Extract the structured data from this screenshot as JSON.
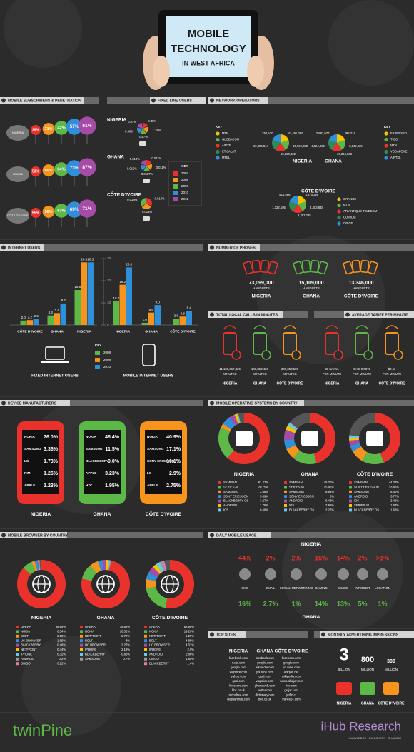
{
  "header": {
    "title_lines": [
      "MOBILE",
      "TECHNOLOGY",
      "IN WEST AFRICA"
    ]
  },
  "subscribers": {
    "title": "MOBILE SUBSCRIBERS & PENETRATION",
    "rows": [
      {
        "country": "NIGERIA",
        "values": [
          "29%",
          "31%",
          "42%",
          "57%",
          "61%"
        ]
      },
      {
        "country": "GHANA",
        "values": [
          "53%",
          "60%",
          "64%",
          "73%",
          "87%"
        ]
      },
      {
        "country": "CÔTE D'IVOIRE",
        "values": [
          "55%",
          "58%",
          "63%",
          "69%",
          "71%"
        ]
      }
    ]
  },
  "fixed_line": {
    "title": "FIXED LINE USERS",
    "rows": [
      {
        "country": "NIGERIA",
        "values": [
          "0.48%",
          "1.18%",
          "0.67%",
          "0.90%",
          "0.87%"
        ]
      },
      {
        "country": "GHANA",
        "values": [
          "0.011%",
          "0.011%",
          "0.0117%",
          "0.015%",
          "0.013%"
        ]
      },
      {
        "country": "CÔTE D'IVOIRE",
        "values": [
          "0.014%",
          "0.013%",
          "0.019%"
        ]
      }
    ],
    "key": {
      "title": "KEY",
      "years": [
        "2007",
        "2008",
        "2009",
        "2010",
        "2011"
      ]
    }
  },
  "operators": {
    "title": "NETWORK OPERATORS",
    "countries": [
      {
        "name": "NIGERIA",
        "key": "KEY",
        "operators": [
          "MTN",
          "GLOBACOM",
          "AIRTEL",
          "ETISALAT",
          "MTEL"
        ],
        "subscribers": [
          "41,461,089",
          "15,752,230",
          "10,820,392",
          "19,806,814",
          "258,520"
        ]
      },
      {
        "name": "GHANA",
        "key": "KEY",
        "operators": [
          "EXPRESSO",
          "TIGO",
          "MTN",
          "VODAFONE",
          "AIRTEL"
        ],
        "subscribers": [
          "292,214",
          "3,642,229",
          "10,394,363",
          "4,524,036",
          "2,897,077"
        ]
      },
      {
        "name": "CÔTE D'IVOIRE",
        "operators": [
          "ORANGE",
          "MTN",
          "ATLANTIQUE TELECOM",
          "COMIUM",
          "ORICEL"
        ],
        "subscribers": [
          "4,370,259",
          "4,403,848",
          "2,292,245",
          "1,122,195",
          "814,966"
        ]
      }
    ]
  },
  "internet": {
    "title": "INTERNET USERS",
    "ylim": [
      0,
      30
    ],
    "yticks": [
      0,
      10,
      20,
      30
    ],
    "fixed": {
      "label": "FIXED INTERNET USERS",
      "groups": [
        {
          "name": "CÔTE D'IVOIRE",
          "values": [
            2.0,
            2.2,
            2.6
          ],
          "value_labels": [
            "2.0",
            "2.2",
            "2.6"
          ]
        },
        {
          "name": "GHANA",
          "values": [
            4.3,
            5.4,
            9.7
          ],
          "value_labels": [
            "4.3",
            "5.4",
            "9.7"
          ]
        },
        {
          "name": "NIGERIA",
          "values": [
            15.8,
            28.3,
            28.3
          ],
          "value_labels": [
            "15.8",
            "28.3",
            "28.3"
          ]
        }
      ]
    },
    "mobile": {
      "label": "MOBILE INTERNET USERS",
      "groups": [
        {
          "name": "NIGERIA",
          "values": [
            10.7,
            18.2,
            26.0
          ],
          "value_labels": [
            "10.7",
            "18.2",
            "26.0"
          ]
        },
        {
          "name": "GHANA",
          "values": [
            1.0,
            5.6,
            9.0
          ],
          "value_labels": [
            "1.0",
            "5.6",
            "9.0"
          ]
        },
        {
          "name": "CÔTE D'IVOIRE",
          "values": [
            2.8,
            3.8,
            6.4
          ],
          "value_labels": [
            "2.8",
            "3.8",
            "6.4"
          ]
        }
      ]
    },
    "key": {
      "title": "KEY",
      "years": [
        "2008",
        "2009",
        "2010"
      ]
    }
  },
  "phones": {
    "title": "NUMBER OF PHONES",
    "items": [
      {
        "count": "73,099,000",
        "unit": "HANDSETS",
        "country": "NIGERIA"
      },
      {
        "count": "15,109,000",
        "unit": "HANDSETS",
        "country": "GHANA"
      },
      {
        "count": "13,346,000",
        "unit": "HANDSETS",
        "country": "CÔTE D'IVOIRE"
      }
    ]
  },
  "calls": {
    "title": "TOTAL LOCAL CALLS IN MINUTES",
    "items": [
      {
        "amount": "41,138,017,326",
        "unit": "MINUTES",
        "country": "NIGERIA"
      },
      {
        "amount": "139,853,403",
        "unit": "MINUTES",
        "country": "GHANA"
      },
      {
        "amount": "309,053,500",
        "unit": "MINUTES",
        "country": "CÔTE D'IVOIRE"
      }
    ]
  },
  "tariff": {
    "title": "AVERAGE TARIFF PER MINUTE",
    "items": [
      {
        "amount": "36 NAIRA",
        "unit": "PER MINUTE",
        "country": "NIGERIA"
      },
      {
        "amount": "GHC 0.0872",
        "unit": "PER MINUTE",
        "country": "GHANA"
      },
      {
        "amount": "$0.11",
        "unit": "PER MINUTE",
        "country": "CÔTE D'IVOIRE"
      }
    ]
  },
  "devices": {
    "title": "DEVICE MANUFACTURERS",
    "phones": [
      {
        "country": "NIGERIA",
        "brands": [
          "NOKIA",
          "SAMSUNG",
          "LG",
          "RIM",
          "APPLE"
        ],
        "shares": [
          "76.0%",
          "3.36%",
          "1.73%",
          "1.26%",
          "1.23%"
        ]
      },
      {
        "country": "GHANA",
        "brands": [
          "NOKIA",
          "SAMSUNG",
          "BLACKBERRY",
          "APPLE",
          "HTC"
        ],
        "shares": [
          "46.4%",
          "11.5%",
          "9.0%",
          "3.23%",
          "1.95%"
        ]
      },
      {
        "country": "CÔTE D'IVOIRE",
        "brands": [
          "NOKIA",
          "SAMSUNG",
          "SONY ERICSSON",
          "LG",
          "APPLE"
        ],
        "shares": [
          "40.9%",
          "17.1%",
          "10.1%",
          "2.9%",
          "2.75%"
        ]
      }
    ]
  },
  "os": {
    "title": "MOBILE OPERATING SYSTEMS BY COUNTRY",
    "countries": [
      {
        "name": "NIGERIA",
        "items": [
          {
            "name": "SYMBIAN",
            "value": 61.27,
            "label": "61.27%"
          },
          {
            "name": "SERIES 40",
            "value": 20.75,
            "label": "20.75%"
          },
          {
            "name": "SAMSUNG",
            "value": 2.66,
            "label": "2.66%"
          },
          {
            "name": "SONY ERICSSON",
            "value": 5.89,
            "label": "5.89%"
          },
          {
            "name": "BLACKBERRY OS",
            "value": 3.27,
            "label": "3.27%"
          },
          {
            "name": "ANDROID",
            "value": 1.78,
            "label": "1.78%"
          },
          {
            "name": "IOS",
            "value": 0.68,
            "label": "0.68%"
          }
        ]
      },
      {
        "name": "GHANA",
        "items": [
          {
            "name": "SYMBIAN",
            "value": 45.71,
            "label": "45.71%"
          },
          {
            "name": "SERIES 40",
            "value": 15.42,
            "label": "15.42%"
          },
          {
            "name": "SAMSUNG",
            "value": 6.95,
            "label": "6.95%"
          },
          {
            "name": "SONY ERICSSON",
            "value": 6,
            "label": "6%"
          },
          {
            "name": "ANDROID",
            "value": 6.48,
            "label": "6.48%"
          },
          {
            "name": "IOS",
            "value": 2.95,
            "label": "2.95%"
          },
          {
            "name": "BLACKBERRY OS",
            "value": 2.27,
            "label": "2.27%"
          }
        ]
      },
      {
        "name": "CÔTE D'IVOIRE",
        "items": [
          {
            "name": "SYMBIAN",
            "value": 44.27,
            "label": "44.27%"
          },
          {
            "name": "SONY ERICSSON",
            "value": 13.86,
            "label": "13.86%"
          },
          {
            "name": "SAMSUNG",
            "value": 8.4,
            "label": "8.40%"
          },
          {
            "name": "ANDROID",
            "value": 3.77,
            "label": "3.77%"
          },
          {
            "name": "IOS",
            "value": 3.42,
            "label": "3.42%"
          },
          {
            "name": "SERIES 40",
            "value": 1.67,
            "label": "1.67%"
          },
          {
            "name": "BLACKBERRY OS",
            "value": 1.66,
            "label": "1.66%"
          }
        ]
      }
    ]
  },
  "browsers": {
    "title": "MOBILE BROWSER BY COUNTRY",
    "countries": [
      {
        "name": "NIGERIA",
        "items": [
          {
            "name": "OPERA",
            "value": 86.69,
            "label": "86.69%"
          },
          {
            "name": "NOKIA",
            "value": 6.54,
            "label": "6.54%"
          },
          {
            "name": "BOLT",
            "value": 2.16,
            "label": "2.16%"
          },
          {
            "name": "UC BROWSER",
            "value": 1.85,
            "label": "1.85%"
          },
          {
            "name": "BLACKBERRY",
            "value": 0.46,
            "label": "0.46%"
          },
          {
            "name": "NETFRONT",
            "value": 0.44,
            "label": "0.44%"
          },
          {
            "name": "IPHONE",
            "value": 0.32,
            "label": "0.32%"
          },
          {
            "name": "ANDROID",
            "value": 0.2,
            "label": "0.2%"
          },
          {
            "name": "OBIGO",
            "value": 0.12,
            "label": "0.12%"
          }
        ]
      },
      {
        "name": "GHANA",
        "items": [
          {
            "name": "OPERA",
            "value": 78.69,
            "label": "78.69%"
          },
          {
            "name": "NOKIA",
            "value": 10.32,
            "label": "10.32%"
          },
          {
            "name": "NETFRONT",
            "value": 5.72,
            "label": "5.72%"
          },
          {
            "name": "BOLT",
            "value": 3,
            "label": "3%"
          },
          {
            "name": "UC BROWSER",
            "value": 2.27,
            "label": "2.27%"
          },
          {
            "name": "IPHONE",
            "value": 2.19,
            "label": "2.19%"
          },
          {
            "name": "BLACKBERRY",
            "value": 0.86,
            "label": "0.86%"
          },
          {
            "name": "SAMSUNG",
            "value": 0.7,
            "label": "0.7%"
          }
        ]
      },
      {
        "name": "CÔTE D'IVOIRE",
        "items": [
          {
            "name": "OPERA",
            "value": 52.9,
            "label": "52.90%"
          },
          {
            "name": "NOKIA",
            "value": 19.2,
            "label": "19.20%"
          },
          {
            "name": "NETFRONT",
            "value": 6.29,
            "label": "6.29%"
          },
          {
            "name": "BOLT",
            "value": 4.85,
            "label": "4.85%"
          },
          {
            "name": "UC BROWSER",
            "value": 4.31,
            "label": "4.31%"
          },
          {
            "name": "IPHONE",
            "value": 2.9,
            "label": "2.9%"
          },
          {
            "name": "ANDROID",
            "value": 2.8,
            "label": "2.80%"
          },
          {
            "name": "OBIGO",
            "value": 1.6,
            "label": "1.60%"
          },
          {
            "name": "BLACKBERRY",
            "value": 1.4,
            "label": "1.4%"
          }
        ]
      }
    ]
  },
  "usage": {
    "title": "DAILY MOBILE USAGE",
    "activities": [
      "SMS",
      "EMAIL",
      "SOCIAL NETWORKING",
      "GAMING",
      "MUSIC",
      "INTERNET",
      "LOCATION"
    ],
    "countries": [
      {
        "name": "NIGERIA",
        "shares": [
          "44%",
          "2%",
          "2%",
          "16%",
          "14%",
          "2%",
          ">1%"
        ]
      },
      {
        "name": "GHANA",
        "shares": [
          "16%",
          "2.7%",
          "1%",
          "14%",
          "13%",
          "5%",
          "1%"
        ]
      }
    ]
  },
  "top_sites": {
    "title": "TOP SITES",
    "columns": [
      {
        "country": "NIGERIA",
        "sites": [
          "facebook.com",
          "naija.com",
          "google.com",
          "waptrick.com",
          "yahoo.com",
          "goal.com",
          "livescore.com",
          "bbc.co.uk",
          "mobofree.com",
          "wapsartings.com"
        ]
      },
      {
        "country": "GHANA",
        "sites": [
          "facebook.com",
          "google.com",
          "wikipedia.com",
          "youtube.com",
          "goal.com",
          "waptrick.com",
          "ghanaweb.com",
          "twitter.com",
          "dictionary.com",
          "bbc.co.uk"
        ]
      },
      {
        "country": "CÔTE D'IVOIRE",
        "sites": [
          "facebook.com",
          "google.com",
          "youtube.com",
          "abidjan.net",
          "wikipedia.com",
          "news.abidjan.net",
          "live.com",
          "getjar.com",
          "jetfm.ci",
          "france24.com"
        ]
      }
    ]
  },
  "ads": {
    "title": "MONTHLY ADVERTISING IMPRESSIONS",
    "items": [
      {
        "amount": "3",
        "unit": "BILLION",
        "country": "NIGERIA"
      },
      {
        "amount": "800",
        "unit": "MILLION",
        "country": "GHANA"
      },
      {
        "amount": "300",
        "unit": "MILLION",
        "country": "CÔTE D'IVOIRE"
      }
    ]
  },
  "footer": {
    "left": "twinPine",
    "right": "iHub Research",
    "tagline": "KNOWLEDGE · DISCOVERY · SHARING"
  }
}
